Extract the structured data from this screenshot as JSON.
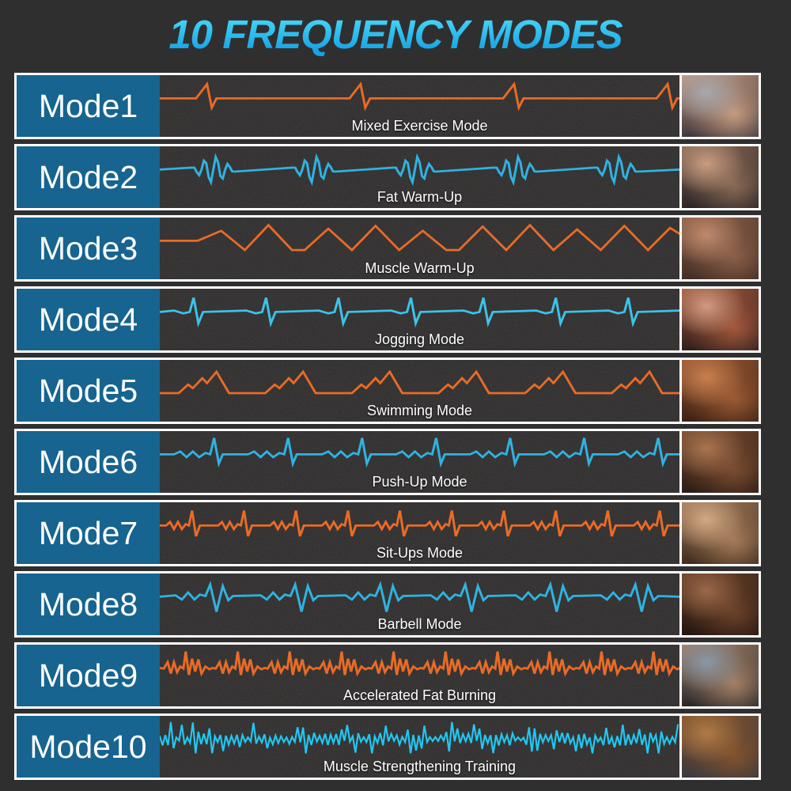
{
  "title": "10 FREQUENCY MODES",
  "colors": {
    "title_top": "#49d8f8",
    "title_bottom": "#17a3e4",
    "page_bg": "#302f2f",
    "panel_bg": "#272524",
    "label_bg": "#16648f",
    "border": "#ffffff",
    "text": "#ffffff",
    "wave_orange": "#e96b26",
    "wave_blue": "#2fb3e2"
  },
  "modes": [
    {
      "label": "Mode1",
      "description": "Mixed Exercise Mode",
      "wave": "ecg-pulse",
      "wave_color": "#e96b26",
      "photo": {
        "subject": "thigh",
        "c1": "#a8a7ad",
        "c2": "#c59b80",
        "c3": "#26242e"
      }
    },
    {
      "label": "Mode2",
      "description": "Fat Warm-Up",
      "wave": "wavelet-bursts",
      "wave_color": "#2fb3e2",
      "photo": {
        "subject": "glutes",
        "c1": "#c99d80",
        "c2": "#8a6a55",
        "c3": "#16151c"
      }
    },
    {
      "label": "Mode3",
      "description": "Muscle Warm-Up",
      "wave": "triangle-wave",
      "wave_color": "#e96b26",
      "photo": {
        "subject": "side-torso",
        "c1": "#c08a6d",
        "c2": "#8a5f49",
        "c3": "#35231c"
      }
    },
    {
      "label": "Mode4",
      "description": "Jogging Mode",
      "wave": "spike-pairs",
      "wave_color": "#3cc3ea",
      "photo": {
        "subject": "upper-back",
        "c1": "#d29a80",
        "c2": "#a3583c",
        "c3": "#1a1315"
      }
    },
    {
      "label": "Mode5",
      "description": "Swimming Mode",
      "wave": "step-mountains",
      "wave_color": "#e96b26",
      "photo": {
        "subject": "bicep-flex",
        "c1": "#c97f4e",
        "c2": "#9a5a33",
        "c3": "#2a150e"
      }
    },
    {
      "label": "Mode6",
      "description": "Push-Up Mode",
      "wave": "tall-spike-ecg",
      "wave_color": "#2fb3e2",
      "photo": {
        "subject": "tricep-arm",
        "c1": "#a9744f",
        "c2": "#7a4c31",
        "c3": "#1c1210"
      }
    },
    {
      "label": "Mode7",
      "description": "Sit-Ups Mode",
      "wave": "dense-ecg",
      "wave_color": "#e96b26",
      "photo": {
        "subject": "abs",
        "c1": "#d2a985",
        "c2": "#a47a58",
        "c3": "#2b1d13"
      }
    },
    {
      "label": "Mode8",
      "description": "Barbell Mode",
      "wave": "burst-spikes",
      "wave_color": "#2fb3e2",
      "photo": {
        "subject": "torso-side",
        "c1": "#9a6848",
        "c2": "#6b4229",
        "c3": "#150d0a"
      }
    },
    {
      "label": "Mode9",
      "description": "Accelerated Fat Burning",
      "wave": "rapid-burn-ecg",
      "wave_color": "#e96b26",
      "photo": {
        "subject": "back-muscles",
        "c1": "#8a98a5",
        "c2": "#a58066",
        "c3": "#10161c"
      }
    },
    {
      "label": "Mode10",
      "description": "Muscle Strengthening Training",
      "wave": "dense-noise",
      "wave_color": "#1fc8f2",
      "photo": {
        "subject": "abs-torso",
        "c1": "#b07a45",
        "c2": "#83522c",
        "c3": "#2c3442"
      }
    }
  ]
}
